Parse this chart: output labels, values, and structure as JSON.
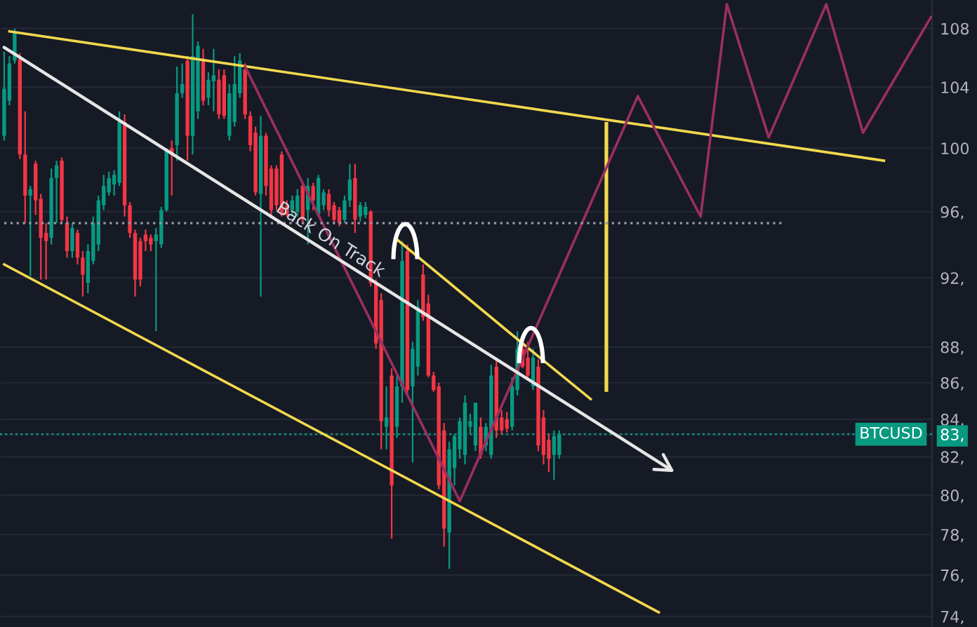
{
  "chart_data": {
    "type": "candlestick",
    "log": "y",
    "grid": "y",
    "ylim": [
      73.5,
      110.0
    ],
    "yticks": [
      {
        "value": 108,
        "label": "108"
      },
      {
        "value": 104,
        "label": "104"
      },
      {
        "value": 100,
        "label": "100"
      },
      {
        "value": 96,
        "label": "96,"
      },
      {
        "value": 92,
        "label": "92,"
      },
      {
        "value": 88,
        "label": "88,"
      },
      {
        "value": 86,
        "label": "86,"
      },
      {
        "value": 84,
        "label": "84,"
      },
      {
        "value": 83.2,
        "label": "83,"
      },
      {
        "value": 82,
        "label": "82,"
      },
      {
        "value": 80,
        "label": "80,"
      },
      {
        "value": 78,
        "label": "78,"
      },
      {
        "value": 76,
        "label": "76,"
      },
      {
        "value": 74,
        "label": "74,"
      }
    ],
    "categories": [
      null,
      null,
      null,
      null,
      null,
      null,
      null,
      null,
      null,
      null,
      null,
      null,
      null,
      null,
      null,
      null,
      null,
      null,
      null,
      null,
      null,
      null,
      null,
      null,
      null,
      null,
      null,
      null,
      null,
      null,
      null,
      null,
      null,
      null,
      null,
      null,
      null,
      null,
      null,
      null,
      null,
      null,
      null,
      null,
      null,
      null,
      null,
      null,
      null,
      null,
      null,
      null,
      null,
      null,
      null,
      null,
      null,
      null,
      null,
      null,
      null,
      null,
      null,
      null,
      null,
      null,
      null,
      null,
      null,
      null,
      null,
      null,
      null,
      null,
      null,
      null,
      null,
      null,
      null,
      null,
      null,
      null,
      null,
      null,
      null,
      null,
      null,
      null,
      null,
      null,
      null,
      null,
      null,
      null,
      null,
      null,
      null,
      null,
      null,
      null,
      null,
      null,
      null,
      null,
      null,
      null,
      null,
      null,
      null,
      null,
      null,
      null,
      null,
      null,
      null,
      null,
      null,
      null,
      null,
      null,
      null,
      null,
      null,
      null,
      null,
      null,
      null,
      null,
      null,
      null,
      null,
      null,
      null,
      null,
      null,
      null,
      null,
      null,
      null,
      null,
      null,
      null,
      null,
      null,
      null,
      null,
      null,
      null,
      null,
      null,
      null,
      null,
      null,
      null,
      null,
      null,
      null,
      null,
      null,
      null,
      null,
      null,
      null,
      null,
      null,
      null,
      null,
      null,
      null,
      null,
      null,
      null,
      null,
      null,
      null,
      null,
      null,
      null
    ],
    "ohlc": [
      [
        100.8,
        106.4,
        100.5,
        103.9
      ],
      [
        103.1,
        106.1,
        102.8,
        105.6
      ],
      [
        105.8,
        108.0,
        105.6,
        107.7
      ],
      [
        105.9,
        106.3,
        99.3,
        99.6
      ],
      [
        99.6,
        102.4,
        95.3,
        97.0
      ],
      [
        97.0,
        97.6,
        92.1,
        97.4
      ],
      [
        99.0,
        99.2,
        95.8,
        96.7
      ],
      [
        96.8,
        97.1,
        91.9,
        94.4
      ],
      [
        94.7,
        95.3,
        91.9,
        94.2
      ],
      [
        94.4,
        98.7,
        94.0,
        98.1
      ],
      [
        98.1,
        99.2,
        95.3,
        98.9
      ],
      [
        99.2,
        99.4,
        95.3,
        95.5
      ],
      [
        95.3,
        95.7,
        93.2,
        93.6
      ],
      [
        93.6,
        95.3,
        93.2,
        95.0
      ],
      [
        94.7,
        94.9,
        92.8,
        93.2
      ],
      [
        93.2,
        93.6,
        90.9,
        92.2
      ],
      [
        91.7,
        94.0,
        91.1,
        93.6
      ],
      [
        93.0,
        95.7,
        92.8,
        95.3
      ],
      [
        94.0,
        97.0,
        93.6,
        96.7
      ],
      [
        96.4,
        98.3,
        96.1,
        97.6
      ],
      [
        97.2,
        98.5,
        97.0,
        98.1
      ],
      [
        97.7,
        98.6,
        97.0,
        98.3
      ],
      [
        97.8,
        102.4,
        97.6,
        101.7
      ],
      [
        101.7,
        102.2,
        95.7,
        96.4
      ],
      [
        96.4,
        96.6,
        94.4,
        94.7
      ],
      [
        94.7,
        94.9,
        90.9,
        91.9
      ],
      [
        94.2,
        94.4,
        91.5,
        91.9
      ],
      [
        94.6,
        94.9,
        93.6,
        94.2
      ],
      [
        94.4,
        94.6,
        93.6,
        94.0
      ],
      [
        94.2,
        95.0,
        88.9,
        94.6
      ],
      [
        94.0,
        96.3,
        93.8,
        96.1
      ],
      [
        96.1,
        100.0,
        96.0,
        99.9
      ],
      [
        100.0,
        100.5,
        97.0,
        99.6
      ],
      [
        100.2,
        105.4,
        99.2,
        103.6
      ],
      [
        103.6,
        105.6,
        103.3,
        104.2
      ],
      [
        105.8,
        106.1,
        99.2,
        100.8
      ],
      [
        100.8,
        109.0,
        99.6,
        106.1
      ],
      [
        102.4,
        107.1,
        101.9,
        106.8
      ],
      [
        105.8,
        106.6,
        102.8,
        103.1
      ],
      [
        103.3,
        105.0,
        102.8,
        104.5
      ],
      [
        104.4,
        106.6,
        102.4,
        104.8
      ],
      [
        104.5,
        105.2,
        101.9,
        102.2
      ],
      [
        104.8,
        105.2,
        101.9,
        102.1
      ],
      [
        100.8,
        104.2,
        100.5,
        103.6
      ],
      [
        101.7,
        106.1,
        101.4,
        104.2
      ],
      [
        103.6,
        106.3,
        103.3,
        105.8
      ],
      [
        105.2,
        105.6,
        101.9,
        102.2
      ],
      [
        102.1,
        102.4,
        99.8,
        100.2
      ],
      [
        101.0,
        101.4,
        97.0,
        97.2
      ],
      [
        97.1,
        102.1,
        90.9,
        100.8
      ],
      [
        100.8,
        101.0,
        97.0,
        97.6
      ],
      [
        98.7,
        98.9,
        95.7,
        96.1
      ],
      [
        98.7,
        98.9,
        96.1,
        96.4
      ],
      [
        99.6,
        99.8,
        95.7,
        95.8
      ],
      [
        96.4,
        96.7,
        95.7,
        95.8
      ],
      [
        96.1,
        97.0,
        95.7,
        96.7
      ],
      [
        96.0,
        97.4,
        95.7,
        97.0
      ],
      [
        97.6,
        97.8,
        95.3,
        95.5
      ],
      [
        96.1,
        98.1,
        94.0,
        97.6
      ],
      [
        97.6,
        97.8,
        96.1,
        96.7
      ],
      [
        95.8,
        98.3,
        95.7,
        98.1
      ],
      [
        96.4,
        97.4,
        96.1,
        97.2
      ],
      [
        97.1,
        97.4,
        95.7,
        96.1
      ],
      [
        96.4,
        96.6,
        95.3,
        95.5
      ],
      [
        96.1,
        96.3,
        95.1,
        95.3
      ],
      [
        95.5,
        97.0,
        95.3,
        96.7
      ],
      [
        96.7,
        99.0,
        96.3,
        98.0
      ],
      [
        98.1,
        99.0,
        94.7,
        95.5
      ],
      [
        95.7,
        96.6,
        95.4,
        96.4
      ],
      [
        95.8,
        96.6,
        95.6,
        96.3
      ],
      [
        96.0,
        96.1,
        91.5,
        91.7
      ],
      [
        91.7,
        91.9,
        87.9,
        88.2
      ],
      [
        90.7,
        91.1,
        82.4,
        83.9
      ],
      [
        83.6,
        85.8,
        82.4,
        84.1
      ],
      [
        86.4,
        86.8,
        77.8,
        80.5
      ],
      [
        83.6,
        86.4,
        83.0,
        85.8
      ],
      [
        85.8,
        94.2,
        84.9,
        93.0
      ],
      [
        93.6,
        94.0,
        85.3,
        85.6
      ],
      [
        85.8,
        88.3,
        81.7,
        87.9
      ],
      [
        86.9,
        90.7,
        86.4,
        90.3
      ],
      [
        92.2,
        92.8,
        89.5,
        89.7
      ],
      [
        90.5,
        91.0,
        86.3,
        86.4
      ],
      [
        86.4,
        86.6,
        85.5,
        85.6
      ],
      [
        85.8,
        86.0,
        80.3,
        80.5
      ],
      [
        83.4,
        83.8,
        77.4,
        78.3
      ],
      [
        78.1,
        82.8,
        76.3,
        82.4
      ],
      [
        81.4,
        83.2,
        80.5,
        83.1
      ],
      [
        82.4,
        84.1,
        81.9,
        83.9
      ],
      [
        82.1,
        85.3,
        81.6,
        84.9
      ],
      [
        83.6,
        84.3,
        83.2,
        83.9
      ],
      [
        82.6,
        84.9,
        82.3,
        84.9
      ],
      [
        83.6,
        84.1,
        81.9,
        82.1
      ],
      [
        82.6,
        83.8,
        82.3,
        83.6
      ],
      [
        82.1,
        87.0,
        81.9,
        86.4
      ],
      [
        86.9,
        87.3,
        83.0,
        83.4
      ],
      [
        84.1,
        84.5,
        83.2,
        83.4
      ],
      [
        84.0,
        84.4,
        83.3,
        83.5
      ],
      [
        83.6,
        86.3,
        83.4,
        85.8
      ],
      [
        85.6,
        88.9,
        85.3,
        87.9
      ],
      [
        87.9,
        88.3,
        86.8,
        86.9
      ],
      [
        87.4,
        88.3,
        86.3,
        86.4
      ],
      [
        85.8,
        87.9,
        85.6,
        87.4
      ],
      [
        86.9,
        87.3,
        82.3,
        82.6
      ],
      [
        84.1,
        84.5,
        81.6,
        82.1
      ],
      [
        82.9,
        83.2,
        81.2,
        81.9
      ],
      [
        82.1,
        83.4,
        80.8,
        83.1
      ],
      [
        82.1,
        83.4,
        81.9,
        83.2
      ],
      null,
      null,
      null,
      null,
      null,
      null,
      null,
      null,
      null,
      null,
      null,
      null,
      null,
      null,
      null,
      null,
      null,
      null,
      null,
      null,
      null,
      null,
      null,
      null,
      null,
      null,
      null,
      null,
      null,
      null,
      null,
      null,
      null,
      null,
      null,
      null,
      null,
      null,
      null,
      null,
      null,
      null,
      null,
      null,
      null,
      null,
      null,
      null,
      null,
      null,
      null,
      null,
      null,
      null,
      null,
      null,
      null,
      null,
      null,
      null,
      null,
      null,
      null,
      null,
      null,
      null,
      null,
      null,
      null,
      null,
      null
    ],
    "series": [
      {
        "type": "line",
        "color": "#f2d94e",
        "values": [
          null,
          107.8,
          null,
          null,
          null,
          null,
          null,
          null,
          null,
          null,
          null,
          null,
          null,
          null,
          null,
          null,
          null,
          null,
          null,
          null,
          null,
          null,
          null,
          null,
          null,
          null,
          null,
          null,
          null,
          null,
          null,
          null,
          null,
          null,
          null,
          null,
          null,
          null,
          null,
          null,
          null,
          null,
          null,
          null,
          null,
          null,
          null,
          null,
          null,
          null,
          null,
          null,
          null,
          null,
          null,
          null,
          null,
          null,
          null,
          null,
          null,
          null,
          null,
          null,
          null,
          null,
          null,
          null,
          null,
          null,
          null,
          null,
          null,
          null,
          null,
          null,
          null,
          null,
          null,
          null,
          null,
          null,
          null,
          null,
          null,
          null,
          null,
          null,
          null,
          null,
          null,
          null,
          null,
          null,
          null,
          null,
          null,
          null,
          null,
          null,
          null,
          null,
          null,
          null,
          null,
          null,
          null,
          null,
          null,
          null,
          null,
          null,
          null,
          null,
          null,
          null,
          null,
          null,
          null,
          null,
          null,
          null,
          null,
          null,
          null,
          null,
          null,
          null,
          null,
          null,
          null,
          null,
          null,
          null,
          null,
          null,
          null,
          null,
          null,
          null,
          null,
          null,
          null,
          null,
          null,
          null,
          null,
          null,
          null,
          null,
          null,
          null,
          null,
          null,
          null,
          null,
          null,
          null,
          null,
          null,
          null,
          null,
          null,
          null,
          null,
          null,
          null,
          null,
          99.2,
          null,
          null,
          null,
          null,
          null,
          null,
          null,
          null,
          null
        ]
      },
      {
        "type": "line",
        "color": "#f2d94e",
        "values": [
          92.8,
          null,
          null,
          null,
          null,
          null,
          null,
          null,
          null,
          null,
          null,
          null,
          null,
          null,
          null,
          null,
          null,
          null,
          null,
          null,
          null,
          null,
          null,
          null,
          null,
          null,
          null,
          null,
          null,
          null,
          null,
          null,
          null,
          null,
          null,
          null,
          null,
          null,
          null,
          null,
          null,
          null,
          null,
          null,
          null,
          null,
          null,
          null,
          null,
          null,
          null,
          null,
          null,
          null,
          null,
          null,
          null,
          null,
          null,
          null,
          null,
          null,
          null,
          null,
          null,
          null,
          null,
          null,
          null,
          null,
          null,
          null,
          null,
          null,
          null,
          null,
          null,
          null,
          null,
          null,
          null,
          null,
          null,
          null,
          null,
          null,
          null,
          null,
          null,
          null,
          null,
          null,
          null,
          null,
          null,
          null,
          null,
          null,
          null,
          null,
          null,
          null,
          null,
          null,
          null,
          null,
          null,
          null,
          null,
          null,
          null,
          null,
          null,
          null,
          null,
          null,
          null,
          null,
          null,
          null,
          null,
          null,
          null,
          null,
          null,
          74.2,
          null,
          null,
          null,
          null,
          null,
          null,
          null,
          null,
          null,
          null,
          null,
          null,
          null,
          null,
          null,
          null,
          null,
          null,
          null,
          null,
          null,
          null,
          null,
          null,
          null,
          null,
          null,
          null,
          null,
          null,
          null,
          null,
          null,
          null,
          null,
          null,
          null,
          null,
          null,
          null,
          null,
          null,
          null,
          null,
          null,
          null,
          null,
          null,
          null,
          null,
          null,
          null
        ]
      },
      {
        "type": "line",
        "color": "#e6e6e6",
        "values": [
          106.7,
          null,
          null,
          null,
          null,
          null,
          null,
          null,
          null,
          null,
          null,
          null,
          null,
          null,
          null,
          null,
          null,
          null,
          null,
          null,
          null,
          null,
          null,
          null,
          null,
          null,
          null,
          null,
          null,
          null,
          null,
          null,
          null,
          null,
          null,
          null,
          null,
          null,
          null,
          null,
          null,
          null,
          null,
          null,
          null,
          null,
          null,
          null,
          null,
          null,
          null,
          null,
          null,
          null,
          null,
          null,
          null,
          null,
          null,
          null,
          null,
          null,
          null,
          null,
          null,
          null,
          null,
          null,
          null,
          null,
          null,
          null,
          null,
          null,
          null,
          null,
          null,
          null,
          null,
          null,
          null,
          null,
          null,
          null,
          null,
          null,
          null,
          null,
          null,
          null,
          null,
          null,
          null,
          null,
          null,
          null,
          null,
          null,
          null,
          null,
          null,
          null,
          null,
          null,
          null,
          null,
          null,
          null,
          null,
          null,
          null,
          null,
          null,
          null,
          null,
          null,
          null,
          null,
          null,
          null,
          null,
          null,
          null,
          null,
          null,
          null,
          null,
          null,
          81.2,
          null,
          null,
          null,
          null,
          null,
          null,
          null,
          null,
          null,
          null,
          null,
          null,
          null,
          null,
          null,
          null,
          null,
          null,
          null,
          null,
          null,
          null,
          null,
          null,
          null,
          null,
          null,
          null,
          null,
          null,
          null,
          null,
          null,
          null,
          null,
          null,
          null,
          null,
          null,
          null,
          null,
          null,
          null,
          null,
          null,
          null,
          null,
          null,
          null
        ]
      },
      {
        "type": "line",
        "color": "#f2d94e",
        "values": [
          null,
          null,
          null,
          null,
          null,
          null,
          null,
          null,
          null,
          null,
          null,
          null,
          null,
          null,
          null,
          null,
          null,
          null,
          null,
          null,
          null,
          null,
          null,
          null,
          null,
          null,
          null,
          null,
          null,
          null,
          null,
          null,
          null,
          null,
          null,
          null,
          null,
          null,
          null,
          null,
          null,
          null,
          null,
          null,
          null,
          null,
          null,
          null,
          null,
          null,
          null,
          null,
          null,
          null,
          null,
          null,
          null,
          null,
          null,
          null,
          null,
          null,
          null,
          null,
          null,
          null,
          null,
          null,
          null,
          null,
          null,
          null,
          null,
          null,
          null,
          94.3,
          null,
          null,
          null,
          null,
          null,
          null,
          null,
          null,
          null,
          null,
          null,
          null,
          null,
          null,
          null,
          null,
          null,
          null,
          null,
          null,
          null,
          null,
          null,
          88.2,
          null,
          null,
          null,
          null,
          null,
          null,
          null,
          null,
          null,
          null,
          null,
          null,
          85.1,
          null,
          null,
          null,
          null,
          null,
          null,
          null,
          null,
          null,
          null,
          null,
          null,
          null,
          null,
          null,
          null,
          null,
          null,
          null,
          null,
          null,
          null,
          null,
          null,
          null,
          null,
          null,
          null,
          null,
          null,
          null,
          null,
          null,
          null,
          null,
          null,
          null,
          null,
          null,
          null,
          null,
          null,
          null,
          null,
          null,
          null,
          null,
          null,
          null,
          null,
          null,
          null,
          null,
          null,
          null,
          null,
          null,
          null,
          null,
          null,
          null,
          null,
          null,
          null,
          null
        ]
      },
      {
        "type": "bar",
        "color": "#f2d94e",
        "base": [
          null,
          null,
          null,
          null,
          null,
          null,
          null,
          null,
          null,
          null,
          null,
          null,
          null,
          null,
          null,
          null,
          null,
          null,
          null,
          null,
          null,
          null,
          null,
          null,
          null,
          null,
          null,
          null,
          null,
          null,
          null,
          null,
          null,
          null,
          null,
          null,
          null,
          null,
          null,
          null,
          null,
          null,
          null,
          null,
          null,
          null,
          null,
          null,
          null,
          null,
          null,
          null,
          null,
          null,
          null,
          null,
          null,
          null,
          null,
          null,
          null,
          null,
          null,
          null,
          null,
          null,
          null,
          null,
          null,
          null,
          null,
          null,
          null,
          null,
          null,
          null,
          null,
          null,
          null,
          null,
          null,
          null,
          null,
          null,
          null,
          null,
          null,
          null,
          null,
          null,
          null,
          null,
          null,
          null,
          null,
          null,
          null,
          null,
          null,
          null,
          null,
          null,
          null,
          null,
          null,
          null,
          null,
          null,
          null,
          null,
          null,
          null,
          null,
          null,
          null,
          85.5,
          null,
          null,
          null,
          null,
          null,
          null,
          null,
          null,
          null,
          null,
          null,
          null,
          null,
          null,
          null,
          null,
          null,
          null,
          null,
          null,
          null,
          null,
          null,
          null,
          null,
          null,
          null,
          null,
          null,
          null,
          null,
          null,
          null,
          null,
          null,
          null,
          null,
          null,
          null,
          null,
          null,
          null,
          null,
          null,
          null,
          null,
          null,
          null,
          null,
          null,
          null,
          null,
          null,
          null,
          null,
          null,
          null,
          null,
          null,
          null,
          null,
          null
        ],
        "values": [
          null,
          null,
          null,
          null,
          null,
          null,
          null,
          null,
          null,
          null,
          null,
          null,
          null,
          null,
          null,
          null,
          null,
          null,
          null,
          null,
          null,
          null,
          null,
          null,
          null,
          null,
          null,
          null,
          null,
          null,
          null,
          null,
          null,
          null,
          null,
          null,
          null,
          null,
          null,
          null,
          null,
          null,
          null,
          null,
          null,
          null,
          null,
          null,
          null,
          null,
          null,
          null,
          null,
          null,
          null,
          null,
          null,
          null,
          null,
          null,
          null,
          null,
          null,
          null,
          null,
          null,
          null,
          null,
          null,
          null,
          null,
          null,
          null,
          null,
          null,
          null,
          null,
          null,
          null,
          null,
          null,
          null,
          null,
          null,
          null,
          null,
          null,
          null,
          null,
          null,
          null,
          null,
          null,
          null,
          null,
          null,
          null,
          null,
          null,
          null,
          null,
          null,
          null,
          null,
          null,
          null,
          null,
          null,
          null,
          null,
          null,
          null,
          null,
          null,
          null,
          16.2,
          null,
          null,
          null,
          null,
          null,
          null,
          null,
          null,
          null,
          null,
          null,
          null,
          null,
          null,
          null,
          null,
          null,
          null,
          null,
          null,
          null,
          null,
          null,
          null,
          null,
          null,
          null,
          null,
          null,
          null,
          null,
          null,
          null,
          null,
          null,
          null,
          null,
          null,
          null,
          null,
          null,
          null,
          null,
          null,
          null,
          null,
          null,
          null,
          null,
          null,
          null,
          null,
          null,
          null,
          null,
          null,
          null,
          null,
          null,
          null,
          null,
          null
        ]
      },
      {
        "type": "line",
        "color": "#9b2f5f",
        "values": [
          null,
          null,
          null,
          null,
          null,
          null,
          null,
          null,
          null,
          null,
          null,
          null,
          null,
          null,
          null,
          null,
          null,
          null,
          null,
          null,
          null,
          null,
          null,
          null,
          null,
          null,
          null,
          null,
          null,
          null,
          null,
          null,
          null,
          null,
          null,
          null,
          null,
          null,
          null,
          null,
          null,
          null,
          null,
          null,
          null,
          null,
          105.4,
          null,
          null,
          null,
          null,
          null,
          null,
          null,
          null,
          null,
          null,
          null,
          null,
          null,
          null,
          null,
          null,
          null,
          null,
          null,
          null,
          null,
          null,
          null,
          null,
          null,
          null,
          null,
          null,
          null,
          null,
          null,
          null,
          null,
          null,
          null,
          null,
          null,
          null,
          null,
          null,
          79.7,
          null,
          null,
          null,
          null,
          null,
          null,
          null,
          null,
          null,
          null,
          null,
          null,
          null,
          null,
          null,
          null,
          null,
          null,
          null,
          null,
          null,
          null,
          null,
          null,
          null,
          null,
          null,
          null,
          null,
          null,
          null,
          null,
          null,
          103.4,
          null,
          null,
          null,
          null,
          null,
          null,
          null,
          null,
          null,
          null,
          null,
          95.7,
          null,
          null,
          null,
          null,
          109.7,
          null,
          null,
          null,
          null,
          null,
          null,
          null,
          100.7,
          null,
          null,
          null,
          null,
          null,
          null,
          null,
          null,
          null,
          null,
          109.7,
          null,
          null,
          null,
          null,
          null,
          null,
          101.0,
          null,
          null,
          null,
          null,
          null,
          null,
          null,
          null,
          null,
          null,
          null,
          null,
          108.8
        ]
      },
      {
        "type": "line",
        "color": "#9598a1",
        "line_style": "dotted",
        "values": [
          95.3,
          null,
          null,
          null,
          null,
          null,
          null,
          null,
          null,
          null,
          null,
          null,
          null,
          null,
          null,
          null,
          null,
          null,
          null,
          null,
          null,
          null,
          null,
          null,
          null,
          null,
          null,
          null,
          null,
          null,
          null,
          null,
          null,
          null,
          null,
          null,
          null,
          null,
          null,
          null,
          null,
          null,
          null,
          null,
          null,
          null,
          null,
          null,
          null,
          null,
          null,
          null,
          null,
          null,
          null,
          null,
          null,
          null,
          null,
          null,
          null,
          null,
          null,
          null,
          null,
          null,
          null,
          null,
          null,
          null,
          null,
          null,
          null,
          null,
          null,
          null,
          null,
          null,
          null,
          null,
          null,
          null,
          null,
          null,
          null,
          null,
          null,
          null,
          null,
          null,
          null,
          null,
          null,
          null,
          null,
          null,
          null,
          null,
          null,
          null,
          null,
          null,
          null,
          null,
          null,
          null,
          null,
          null,
          null,
          null,
          null,
          null,
          null,
          null,
          null,
          null,
          null,
          null,
          null,
          null,
          null,
          null,
          null,
          null,
          null,
          null,
          null,
          null,
          null,
          null,
          null,
          null,
          null,
          null,
          null,
          null,
          null,
          null,
          null,
          null,
          null,
          null,
          null,
          null,
          null,
          null,
          null,
          null,
          null,
          95.3,
          null,
          null,
          null,
          null,
          null,
          null,
          null,
          null,
          null,
          null,
          null,
          null,
          null,
          null,
          null,
          null,
          null,
          null,
          null,
          null,
          null,
          null,
          null,
          null,
          null,
          null,
          null,
          null
        ]
      }
    ],
    "ref_lines": [
      {
        "axis": "y",
        "value": 83.2,
        "label": "BTCUSD",
        "color": "#089981",
        "line_style": "dotted"
      }
    ],
    "annotations": [
      {
        "text": "Back On Track",
        "y": 93.6
      }
    ]
  }
}
